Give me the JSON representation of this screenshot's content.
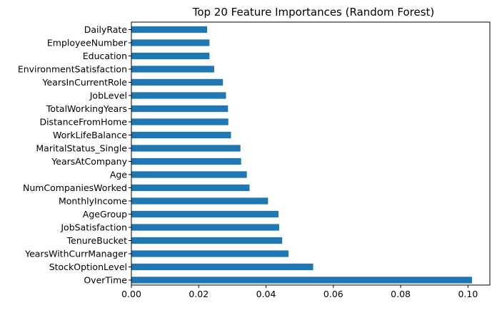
{
  "chart_data": {
    "type": "bar",
    "orientation": "horizontal",
    "title": "Top 20 Feature Importances (Random Forest)",
    "xlabel": "",
    "ylabel": "",
    "xlim": [
      0,
      0.1065
    ],
    "x_ticks": [
      "0.00",
      "0.02",
      "0.04",
      "0.06",
      "0.08",
      "0.10"
    ],
    "grid": false,
    "bar_color": "#1f77b4",
    "categories": [
      "DailyRate",
      "EmployeeNumber",
      "Education",
      "EnvironmentSatisfaction",
      "YearsInCurrentRole",
      "JobLevel",
      "TotalWorkingYears",
      "DistanceFromHome",
      "WorkLifeBalance",
      "MaritalStatus_Single",
      "YearsAtCompany",
      "Age",
      "NumCompaniesWorked",
      "MonthlyIncome",
      "AgeGroup",
      "JobSatisfaction",
      "TenureBucket",
      "YearsWithCurrManager",
      "StockOptionLevel",
      "OverTime"
    ],
    "values": [
      0.0225,
      0.0232,
      0.0232,
      0.0246,
      0.0272,
      0.0281,
      0.0287,
      0.0288,
      0.0296,
      0.0324,
      0.0326,
      0.0343,
      0.0351,
      0.0406,
      0.0437,
      0.0439,
      0.0448,
      0.0467,
      0.054,
      0.1012
    ]
  }
}
